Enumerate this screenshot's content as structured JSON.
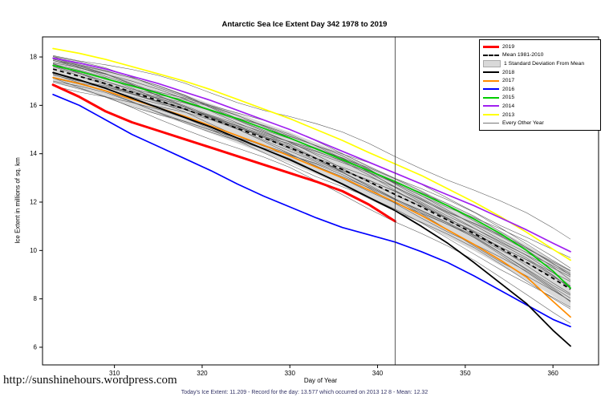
{
  "chart_data": {
    "type": "line",
    "title": "Antarctic Sea Ice Extent Day 342 1978 to 2019",
    "xlabel": "Day of Year",
    "ylabel": "Ice Extent in millions of sq. km",
    "xlim": [
      301.8,
      365.2
    ],
    "ylim": [
      5.27,
      18.83
    ],
    "xticks": [
      310,
      320,
      330,
      340,
      350,
      360
    ],
    "yticks": [
      6,
      8,
      10,
      12,
      14,
      16,
      18
    ],
    "vline_day": 342,
    "x": [
      303,
      306,
      309,
      312,
      315,
      318,
      321,
      324,
      327,
      330,
      333,
      336,
      339,
      342,
      345,
      348,
      351,
      354,
      357,
      360,
      362
    ],
    "mean": {
      "name": "Mean 1981-2010",
      "color": "#000000",
      "values": [
        17.5,
        17.2,
        16.9,
        16.55,
        16.2,
        15.85,
        15.45,
        15.05,
        14.65,
        14.25,
        13.8,
        13.35,
        12.85,
        12.32,
        11.8,
        11.25,
        10.7,
        10.1,
        9.5,
        8.85,
        8.4
      ]
    },
    "band": {
      "name": "1 Standard Deviation From Mean",
      "color": "#d9d9d9",
      "upper": [
        18.05,
        17.76,
        17.47,
        17.13,
        16.79,
        16.45,
        16.06,
        15.67,
        15.28,
        14.89,
        14.45,
        14.01,
        13.52,
        13.0,
        12.49,
        11.95,
        11.41,
        10.82,
        10.23,
        9.59,
        9.15
      ],
      "lower": [
        16.95,
        16.64,
        16.33,
        15.97,
        15.61,
        15.25,
        14.84,
        14.43,
        14.02,
        13.61,
        13.15,
        12.69,
        12.18,
        11.64,
        11.11,
        10.55,
        9.99,
        9.38,
        8.77,
        8.11,
        7.65
      ]
    },
    "series": [
      {
        "name": "2013",
        "color": "#ffff00",
        "width": 1.7,
        "values": [
          18.35,
          18.15,
          17.9,
          17.6,
          17.3,
          17.0,
          16.65,
          16.25,
          15.85,
          15.45,
          15.0,
          14.55,
          14.05,
          13.577,
          13.1,
          12.55,
          12.0,
          11.4,
          10.75,
          10.05,
          9.6
        ]
      },
      {
        "name": "2014",
        "color": "#a020f0",
        "width": 1.7,
        "values": [
          17.95,
          17.75,
          17.5,
          17.2,
          16.9,
          16.55,
          16.2,
          15.8,
          15.4,
          15.0,
          14.55,
          14.1,
          13.65,
          13.2,
          12.75,
          12.3,
          11.85,
          11.35,
          10.85,
          10.3,
          9.95
        ]
      },
      {
        "name": "2015",
        "color": "#00cc00",
        "width": 1.7,
        "values": [
          17.65,
          17.4,
          17.1,
          16.8,
          16.5,
          16.15,
          15.8,
          15.45,
          15.05,
          14.65,
          14.2,
          13.75,
          13.3,
          12.85,
          12.35,
          11.85,
          11.3,
          10.7,
          10.0,
          9.15,
          8.45
        ]
      },
      {
        "name": "2016",
        "color": "#0000ff",
        "width": 1.7,
        "values": [
          16.45,
          16.0,
          15.4,
          14.8,
          14.3,
          13.8,
          13.3,
          12.75,
          12.25,
          11.8,
          11.35,
          10.95,
          10.65,
          10.35,
          9.95,
          9.5,
          8.95,
          8.35,
          7.75,
          7.15,
          6.85
        ]
      },
      {
        "name": "2017",
        "color": "#ff8c00",
        "width": 1.7,
        "values": [
          17.15,
          16.9,
          16.6,
          16.25,
          15.9,
          15.55,
          15.15,
          14.75,
          14.35,
          13.9,
          13.45,
          13.0,
          12.5,
          12.0,
          11.45,
          10.85,
          10.25,
          9.6,
          8.9,
          7.9,
          7.25
        ]
      },
      {
        "name": "2018",
        "color": "#000000",
        "width": 1.8,
        "values": [
          17.35,
          17.05,
          16.7,
          16.3,
          15.9,
          15.5,
          15.1,
          14.65,
          14.2,
          13.75,
          13.25,
          12.75,
          12.2,
          11.65,
          11.0,
          10.3,
          9.5,
          8.65,
          7.8,
          6.7,
          6.05
        ]
      },
      {
        "name": "2019",
        "color": "#ff0000",
        "width": 3,
        "values": [
          16.85,
          16.35,
          15.75,
          15.3,
          14.95,
          14.6,
          14.25,
          13.9,
          13.55,
          13.2,
          12.85,
          12.45,
          11.9,
          11.209
        ]
      }
    ],
    "other_years": {
      "name": "Every Other Year",
      "color": "#555555",
      "wiggle": 0.1,
      "offsets": [
        [
          0.52,
          0.85
        ],
        [
          0.34,
          0.66
        ],
        [
          0.6,
          0.15
        ],
        [
          0.2,
          -0.3
        ],
        [
          -0.2,
          0.42
        ],
        [
          0.45,
          0.05
        ],
        [
          -0.38,
          -0.75
        ],
        [
          0.12,
          0.5
        ],
        [
          -0.08,
          -0.5
        ],
        [
          0.35,
          -0.12
        ],
        [
          -0.3,
          0.22
        ],
        [
          0.55,
          0.4
        ],
        [
          -0.5,
          -0.18
        ],
        [
          0.15,
          -0.58
        ],
        [
          -0.15,
          0.6
        ],
        [
          0.4,
          -0.42
        ],
        [
          0.02,
          0.02
        ],
        [
          -0.6,
          0.08
        ],
        [
          0.25,
          0.72
        ],
        [
          -0.45,
          -0.85
        ],
        [
          0.65,
          2.1
        ],
        [
          -0.55,
          -1.35
        ],
        [
          0.05,
          1.2
        ],
        [
          -0.25,
          0.9
        ]
      ]
    }
  },
  "legend": {
    "items": [
      {
        "label": "2019",
        "swatch": "line",
        "color": "#ff0000",
        "width": 3
      },
      {
        "label": "Mean 1981-2010",
        "swatch": "dashed",
        "color": "#000000",
        "width": 2
      },
      {
        "label": "1 Standard Deviation From Mean",
        "swatch": "box",
        "color": "#d9d9d9"
      },
      {
        "label": "2018",
        "swatch": "line",
        "color": "#000000",
        "width": 2
      },
      {
        "label": "2017",
        "swatch": "line",
        "color": "#ff8c00",
        "width": 2
      },
      {
        "label": "2016",
        "swatch": "line",
        "color": "#0000ff",
        "width": 2
      },
      {
        "label": "2015",
        "swatch": "line",
        "color": "#00cc00",
        "width": 2
      },
      {
        "label": "2014",
        "swatch": "line",
        "color": "#a020f0",
        "width": 2
      },
      {
        "label": "2013",
        "swatch": "line",
        "color": "#ffff00",
        "width": 2
      },
      {
        "label": "Every Other Year",
        "swatch": "line",
        "color": "#777777",
        "width": 1
      }
    ]
  },
  "footer": {
    "stats": "Today's Ice Extent: 11.209  - Record for the day: 13.577 which occurred on 2013 12 8  - Mean: 12.32",
    "url": "http://sunshinehours.wordpress.com"
  }
}
